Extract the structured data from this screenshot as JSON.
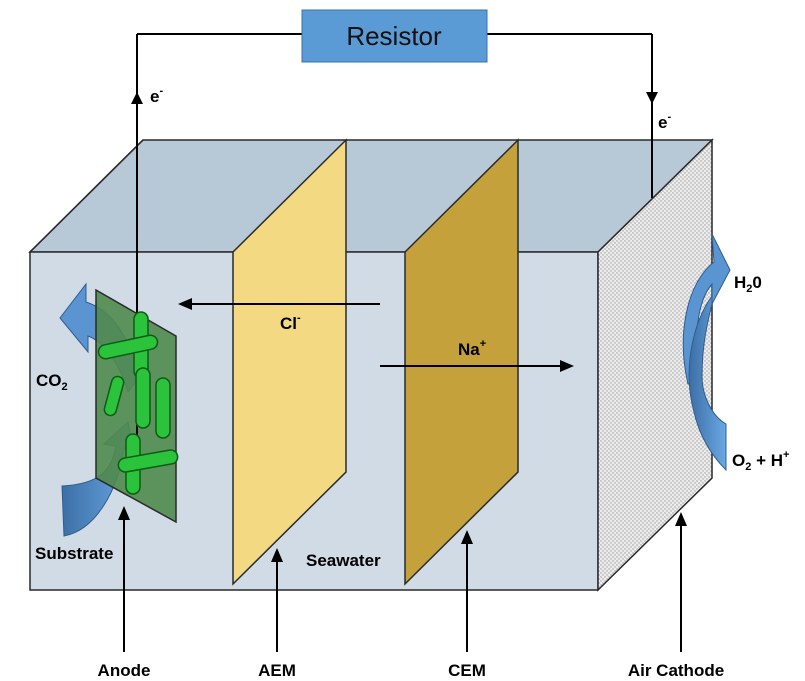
{
  "resistor": {
    "label": "Resistor"
  },
  "electrons": {
    "left": "e",
    "right": "e",
    "superscript": "-"
  },
  "ions": {
    "chloride": {
      "symbol": "Cl",
      "charge": "-"
    },
    "sodium": {
      "symbol": "Na",
      "charge": "+"
    }
  },
  "medium": "Seawater",
  "gases": {
    "co2": {
      "base": "CO",
      "sub": "2"
    },
    "h2o": {
      "base": "H",
      "sub": "2",
      "tail": "0"
    },
    "o2h": {
      "o": "O",
      "sub": "2",
      "plus": " + H",
      "sup": "+"
    }
  },
  "substrate": "Substrate",
  "components": {
    "anode": "Anode",
    "aem": "AEM",
    "cem": "CEM",
    "cathode": "Air Cathode"
  },
  "colors": {
    "front_face": "#d1dbe6",
    "top_face": "#b7c8d6",
    "anode_plate": "#4f8a4b",
    "bacteria": "#2bc33b",
    "aem": "#f3d982",
    "cem": "#c4a13a",
    "resistor": "#5b9bd5",
    "flow_arrow": "#4a86c5"
  }
}
